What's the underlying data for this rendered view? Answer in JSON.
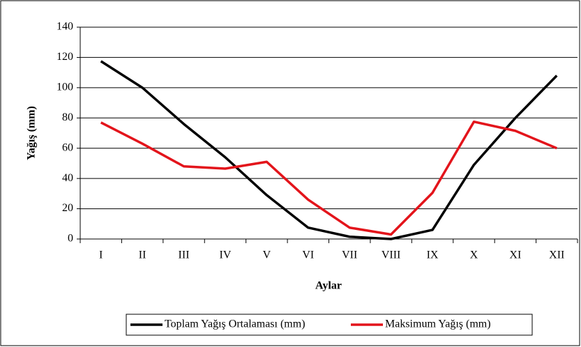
{
  "chart_data": {
    "type": "line",
    "x_label": "Aylar",
    "y_label": "Yağış (mm)",
    "categories": [
      "I",
      "II",
      "III",
      "IV",
      "V",
      "VI",
      "VII",
      "VIII",
      "IX",
      "X",
      "XI",
      "XII"
    ],
    "series": [
      {
        "name": "Toplam Yağış Ortalaması (mm)",
        "color": "#000000",
        "values": [
          117.5,
          100,
          76,
          54,
          29,
          7.5,
          1.5,
          0,
          6,
          49,
          80,
          108
        ]
      },
      {
        "name": "Maksimum Yağış (mm)",
        "color": "#e3141b",
        "values": [
          77,
          63,
          48,
          46.5,
          51,
          26,
          7.5,
          3,
          30.5,
          77.5,
          71.5,
          60
        ]
      }
    ],
    "ylim": [
      0,
      140
    ],
    "yticks": [
      0,
      20,
      40,
      60,
      80,
      100,
      120,
      140
    ],
    "grid": true,
    "legend": "bottom"
  }
}
